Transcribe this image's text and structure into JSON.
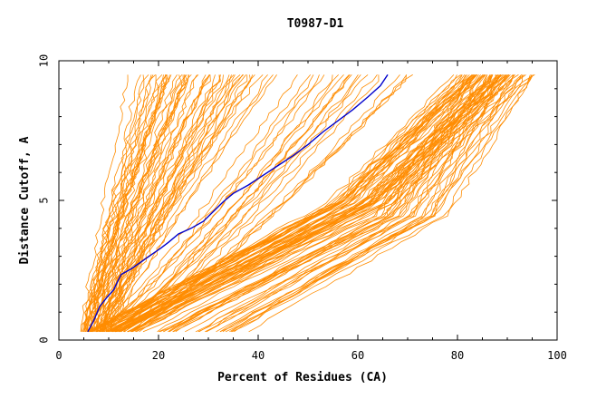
{
  "chart_data": {
    "type": "line",
    "title": "T0987-D1",
    "xlabel": "Percent of Residues (CA)",
    "ylabel": "Distance Cutoff, A",
    "xlim": [
      0,
      100
    ],
    "ylim": [
      0,
      10
    ],
    "x_ticks": [
      "0",
      "20",
      "40",
      "60",
      "80",
      "100"
    ],
    "y_ticks": [
      "0",
      "5",
      "10"
    ],
    "grid": false,
    "legend": "none",
    "colors": {
      "background_series": "#ff8c00",
      "highlight_series": "#0000cc"
    },
    "highlight_series": {
      "x": [
        5.8,
        7.0,
        8.2,
        9.5,
        11.0,
        11.8,
        12.5,
        14.5,
        16.5,
        18.5,
        20.5,
        22.0,
        24.0,
        26.5,
        29.0,
        31.0,
        33.0,
        35.0,
        38.0,
        41.0,
        44.0,
        47.0,
        50.0,
        53.0,
        56.0,
        59.0,
        62.0,
        64.5,
        66.0
      ],
      "y": [
        0.3,
        0.7,
        1.2,
        1.5,
        1.8,
        2.1,
        2.35,
        2.55,
        2.8,
        3.05,
        3.3,
        3.5,
        3.8,
        4.0,
        4.25,
        4.6,
        4.95,
        5.25,
        5.55,
        5.9,
        6.25,
        6.6,
        7.0,
        7.45,
        7.85,
        8.25,
        8.7,
        9.1,
        9.5
      ]
    },
    "bundles": [
      {
        "name_hidden": true,
        "count": 55,
        "x_bottom": [
          3.5,
          11.0
        ],
        "x_top": [
          12.5,
          44.0
        ],
        "y_range": [
          0.3,
          9.5
        ],
        "shape": "steep-left"
      },
      {
        "name_hidden": true,
        "count": 50,
        "x_bottom": [
          4.0,
          17.0
        ],
        "x_top": [
          78.0,
          96.0
        ],
        "y_range": [
          0.3,
          9.5
        ],
        "shape": "lower-right"
      },
      {
        "name_hidden": true,
        "count": 30,
        "x_bottom": [
          12.0,
          40.0
        ],
        "x_top": [
          80.0,
          97.0
        ],
        "y_range": [
          0.3,
          9.5
        ],
        "shape": "outer-right"
      },
      {
        "name_hidden": true,
        "count": 20,
        "x_bottom": [
          6.0,
          16.0
        ],
        "x_top": [
          45.0,
          75.0
        ],
        "y_range": [
          0.3,
          9.5
        ],
        "shape": "middle"
      }
    ]
  }
}
